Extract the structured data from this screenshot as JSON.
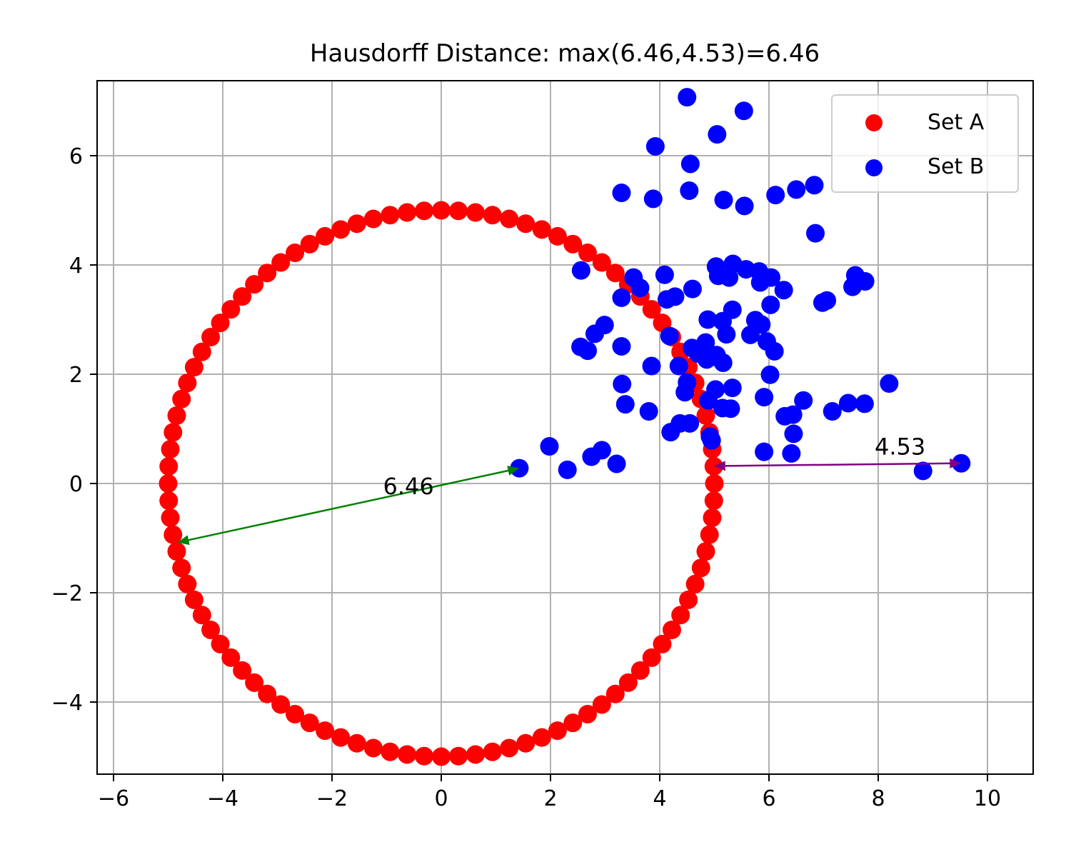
{
  "chart_data": {
    "type": "scatter",
    "title": "Hausdorff Distance: max(6.46,4.53)=6.46",
    "xlabel": "",
    "ylabel": "",
    "xlim": [
      -6.3,
      10.8
    ],
    "ylim": [
      -5.3,
      7.4
    ],
    "xticks": [
      -6,
      -4,
      -2,
      0,
      2,
      4,
      6,
      8,
      10
    ],
    "xtick_labels": [
      "−6",
      "−4",
      "−2",
      "0",
      "2",
      "4",
      "6",
      "8",
      "10"
    ],
    "yticks": [
      -4,
      -2,
      0,
      2,
      4,
      6
    ],
    "ytick_labels": [
      "−4",
      "−2",
      "0",
      "2",
      "4",
      "6"
    ],
    "grid": true,
    "legend_position": "upper right",
    "series": [
      {
        "name": "Set A",
        "color": "#ff0000",
        "shape": "circle",
        "center": [
          0,
          0
        ],
        "radius": 5,
        "count": 100
      },
      {
        "name": "Set B",
        "color": "#0000ff",
        "points": [
          [
            4.5,
            7.07
          ],
          [
            5.54,
            6.82
          ],
          [
            3.92,
            6.17
          ],
          [
            5.05,
            6.39
          ],
          [
            4.56,
            5.85
          ],
          [
            3.3,
            5.32
          ],
          [
            3.88,
            5.21
          ],
          [
            4.54,
            5.36
          ],
          [
            5.17,
            5.19
          ],
          [
            5.55,
            5.08
          ],
          [
            6.12,
            5.28
          ],
          [
            6.5,
            5.38
          ],
          [
            6.83,
            5.46
          ],
          [
            6.85,
            4.58
          ],
          [
            2.56,
            3.9
          ],
          [
            3.52,
            3.77
          ],
          [
            3.64,
            3.58
          ],
          [
            4.09,
            3.82
          ],
          [
            4.6,
            3.56
          ],
          [
            5.03,
            3.97
          ],
          [
            5.07,
            3.8
          ],
          [
            5.27,
            3.77
          ],
          [
            5.34,
            4.02
          ],
          [
            5.58,
            3.92
          ],
          [
            5.82,
            3.88
          ],
          [
            5.84,
            3.68
          ],
          [
            6.04,
            3.77
          ],
          [
            6.27,
            3.54
          ],
          [
            6.98,
            3.31
          ],
          [
            7.06,
            3.35
          ],
          [
            7.53,
            3.6
          ],
          [
            7.58,
            3.81
          ],
          [
            7.76,
            3.7
          ],
          [
            3.3,
            3.4
          ],
          [
            4.13,
            3.37
          ],
          [
            4.28,
            3.42
          ],
          [
            5.33,
            3.18
          ],
          [
            4.88,
            3.0
          ],
          [
            5.15,
            2.97
          ],
          [
            5.75,
            2.99
          ],
          [
            5.86,
            2.91
          ],
          [
            6.03,
            3.27
          ],
          [
            2.99,
            2.9
          ],
          [
            2.81,
            2.74
          ],
          [
            2.55,
            2.5
          ],
          [
            2.68,
            2.43
          ],
          [
            3.3,
            2.51
          ],
          [
            4.18,
            2.7
          ],
          [
            5.22,
            2.73
          ],
          [
            5.66,
            2.72
          ],
          [
            5.96,
            2.6
          ],
          [
            6.1,
            2.42
          ],
          [
            4.59,
            2.48
          ],
          [
            4.84,
            2.58
          ],
          [
            4.7,
            2.38
          ],
          [
            4.86,
            2.27
          ],
          [
            4.98,
            2.32
          ],
          [
            5.04,
            2.35
          ],
          [
            5.16,
            2.21
          ],
          [
            4.35,
            2.15
          ],
          [
            3.85,
            2.15
          ],
          [
            4.5,
            1.85
          ],
          [
            4.46,
            1.67
          ],
          [
            3.31,
            1.82
          ],
          [
            3.37,
            1.45
          ],
          [
            3.8,
            1.32
          ],
          [
            5.02,
            1.72
          ],
          [
            5.33,
            1.75
          ],
          [
            5.91,
            1.58
          ],
          [
            6.02,
            1.99
          ],
          [
            4.89,
            1.52
          ],
          [
            5.15,
            1.38
          ],
          [
            5.3,
            1.37
          ],
          [
            6.29,
            1.23
          ],
          [
            6.44,
            1.26
          ],
          [
            6.63,
            1.52
          ],
          [
            7.16,
            1.32
          ],
          [
            7.45,
            1.47
          ],
          [
            7.75,
            1.46
          ],
          [
            8.2,
            1.83
          ],
          [
            4.37,
            1.1
          ],
          [
            4.55,
            1.1
          ],
          [
            4.2,
            0.94
          ],
          [
            6.45,
            0.91
          ],
          [
            4.92,
            0.86
          ],
          [
            4.95,
            0.79
          ],
          [
            5.91,
            0.58
          ],
          [
            6.41,
            0.55
          ],
          [
            1.43,
            0.28
          ],
          [
            1.98,
            0.68
          ],
          [
            2.31,
            0.25
          ],
          [
            2.75,
            0.49
          ],
          [
            2.94,
            0.61
          ],
          [
            3.21,
            0.36
          ],
          [
            8.82,
            0.23
          ],
          [
            9.52,
            0.37
          ]
        ]
      }
    ],
    "annotations": [
      {
        "label": "6.46",
        "from": [
          -4.83,
          -1.08
        ],
        "to": [
          1.43,
          0.28
        ],
        "label_at": [
          -0.6,
          -0.05
        ],
        "color": "#008000"
      },
      {
        "label": "4.53",
        "from": [
          4.99,
          0.32
        ],
        "to": [
          9.52,
          0.37
        ],
        "label_at": [
          8.4,
          0.67
        ],
        "color": "#800080"
      }
    ]
  }
}
